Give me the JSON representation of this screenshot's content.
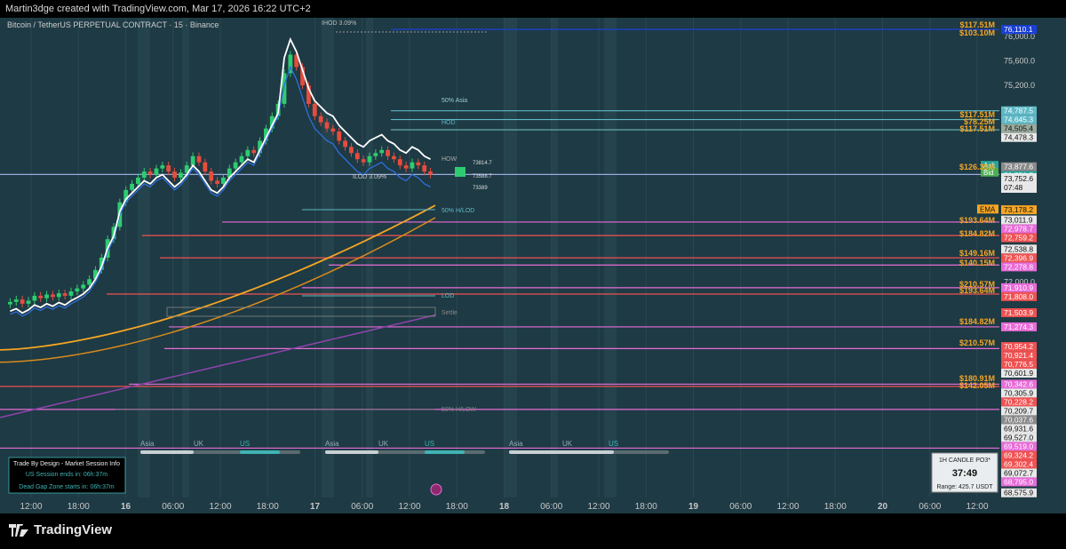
{
  "header": {
    "attribution": "Martin3dge created with TradingView.com, Mar 17, 2026 16:22 UTC+2",
    "symbol_title": "Bitcoin / TetherUS PERPETUAL CONTRACT · 15 · Binance"
  },
  "footer": {
    "brand": "TradingView"
  },
  "colors": {
    "background": "#1e3a44",
    "session_band": "#24434d",
    "grid": "#2a4852",
    "candle_up": "#2ecc71",
    "candle_down": "#e74c3c",
    "ema_orange": "#f5a623",
    "white_line": "#ffffff",
    "blue_line": "#2f6fdc",
    "purple_line": "#8e44ad",
    "orange_text": "#f5a623"
  },
  "chart_data": {
    "type": "candlestick",
    "symbol": "Bitcoin / TetherUS PERPETUAL CONTRACT",
    "interval": "15",
    "exchange": "Binance",
    "ylim": [
      68500,
      76300
    ],
    "x_tick_labels": [
      "12:00",
      "18:00",
      "16",
      "06:00",
      "12:00",
      "18:00",
      "17",
      "06:00",
      "12:00",
      "18:00",
      "18",
      "06:00",
      "12:00",
      "18:00",
      "19",
      "06:00",
      "12:00",
      "18:00",
      "20",
      "06:00",
      "12:00"
    ],
    "y_tick_labels": [
      "76,000.0",
      "75,600.0",
      "75,200.0",
      "72,000.0"
    ],
    "price_series_close": [
      71680,
      71720,
      71650,
      71700,
      71780,
      71740,
      71800,
      71760,
      71820,
      71780,
      71850,
      71900,
      71960,
      72050,
      72200,
      72400,
      72700,
      72900,
      73300,
      73500,
      73600,
      73700,
      73800,
      73750,
      73850,
      73900,
      73800,
      73700,
      73780,
      73900,
      74050,
      73950,
      73800,
      73650,
      73600,
      73700,
      73850,
      73950,
      74050,
      74150,
      74100,
      74300,
      74500,
      74700,
      74900,
      75400,
      75700,
      75500,
      75200,
      74900,
      74700,
      74600,
      74500,
      74450,
      74300,
      74200,
      74100,
      74000,
      73950,
      74050,
      74100,
      74150,
      74050,
      74000,
      73900,
      73850,
      73950,
      73900,
      73800,
      73750
    ],
    "levels": [
      {
        "price": 76110.1,
        "label": "76,110.1",
        "color": "#1a3fd6"
      },
      {
        "price": 74787.5,
        "label": "74,787.5",
        "color": "#5fb9c6"
      },
      {
        "price": 74645.3,
        "label": "74,645.3",
        "color": "#5fb9c6"
      },
      {
        "price": 74505.4,
        "label": "74,505.4",
        "color": "#9aaa9c"
      },
      {
        "price": 74478.3,
        "label": "74,478.3",
        "color": "#e8e8e8"
      },
      {
        "price": 73877.6,
        "label": "73,877.6",
        "color": "#8a8a8a"
      },
      {
        "price": 73752.7,
        "label": "73,752.7",
        "color": "#26a69a"
      },
      {
        "price": 73752.6,
        "label": "73,752.6",
        "color": "#4caf50"
      },
      {
        "price": 73178.2,
        "label": "73,178.2",
        "color": "#f5a623"
      },
      {
        "price": 73011.9,
        "label": "73,011.9",
        "color": "#e8e8e8"
      },
      {
        "price": 72978.7,
        "label": "72,978.7",
        "color": "#e86cd8"
      },
      {
        "price": 72759.2,
        "label": "72,759.2",
        "color": "#f05252"
      },
      {
        "price": 72538.8,
        "label": "72,538.8",
        "color": "#e8e8e8"
      },
      {
        "price": 72396.9,
        "label": "72,396.9",
        "color": "#f05252"
      },
      {
        "price": 72278.8,
        "label": "72,278.8",
        "color": "#e86cd8"
      },
      {
        "price": 71910.9,
        "label": "71,910.9",
        "color": "#e86cd8"
      },
      {
        "price": 71808.0,
        "label": "71,808.0",
        "color": "#f05252"
      },
      {
        "price": 71503.9,
        "label": "71,503.9",
        "color": "#f05252"
      },
      {
        "price": 71274.3,
        "label": "71,274.3",
        "color": "#e86cd8"
      },
      {
        "price": 70954.2,
        "label": "70,954.2",
        "color": "#f05252"
      },
      {
        "price": 70921.4,
        "label": "70,921.4",
        "color": "#f05252"
      },
      {
        "price": 70776.5,
        "label": "70,776.5",
        "color": "#f05252"
      },
      {
        "price": 70601.9,
        "label": "70,601.9",
        "color": "#e8e8e8"
      },
      {
        "price": 70342.6,
        "label": "70,342.6",
        "color": "#e86cd8"
      },
      {
        "price": 70305.9,
        "label": "70,305.9",
        "color": "#e8e8e8"
      },
      {
        "price": 70228.2,
        "label": "70,228.2",
        "color": "#f05252"
      },
      {
        "price": 70209.7,
        "label": "70,209.7",
        "color": "#e8e8e8"
      },
      {
        "price": 70037.6,
        "label": "70,037.6",
        "color": "#8a8a8a"
      },
      {
        "price": 69931.6,
        "label": "69,931.6",
        "color": "#e8e8e8"
      },
      {
        "price": 69527.0,
        "label": "69,527.0",
        "color": "#e8e8e8"
      },
      {
        "price": 69519.0,
        "label": "69,519.0",
        "color": "#e86cd8"
      },
      {
        "price": 69324.2,
        "label": "69,324.2",
        "color": "#f05252"
      },
      {
        "price": 69302.4,
        "label": "69,302.4",
        "color": "#f05252"
      },
      {
        "price": 69072.7,
        "label": "69,072.7",
        "color": "#e8e8e8"
      },
      {
        "price": 68795.0,
        "label": "68,795.0",
        "color": "#e86cd8"
      },
      {
        "price": 68575.9,
        "label": "68,575.9",
        "color": "#e8e8e8"
      }
    ],
    "volume_labels": [
      "$117.51M",
      "$103.10M",
      "$117.51M",
      "$78.25M",
      "$117.51M",
      "$126.39M",
      "$193.64M",
      "$184.82M",
      "$149.16M",
      "$140.15M",
      "$210.57M",
      "$193.64M",
      "$184.82M",
      "$210.57M",
      "$180.91M",
      "$142.05M"
    ],
    "price_tags": {
      "ask": "Ask",
      "bid": "Bid",
      "ema": "EMA",
      "last_price": "73,752.6",
      "countdown": "07:48"
    },
    "annotations": [
      "IHOD 3.09%",
      "50% Asia",
      "HOD",
      "HOW",
      "ILOD 3.09%",
      "50% H/LOD",
      "LOD",
      "Settle",
      "50% H/LOW",
      "73814.7",
      "73588.7",
      "73389"
    ],
    "session_labels": [
      "Asia",
      "UK",
      "US"
    ],
    "info_panel": {
      "title": "Trade By Design - Market Session Info",
      "line1": "US Session ends in: 06h:37m",
      "line2": "Dead Gap Zone starts in: 06h:37m"
    },
    "candle_box": {
      "title": "1H CANDLE PO3*",
      "timer": "37:49",
      "range": "Range: 425.7 USDT"
    }
  }
}
